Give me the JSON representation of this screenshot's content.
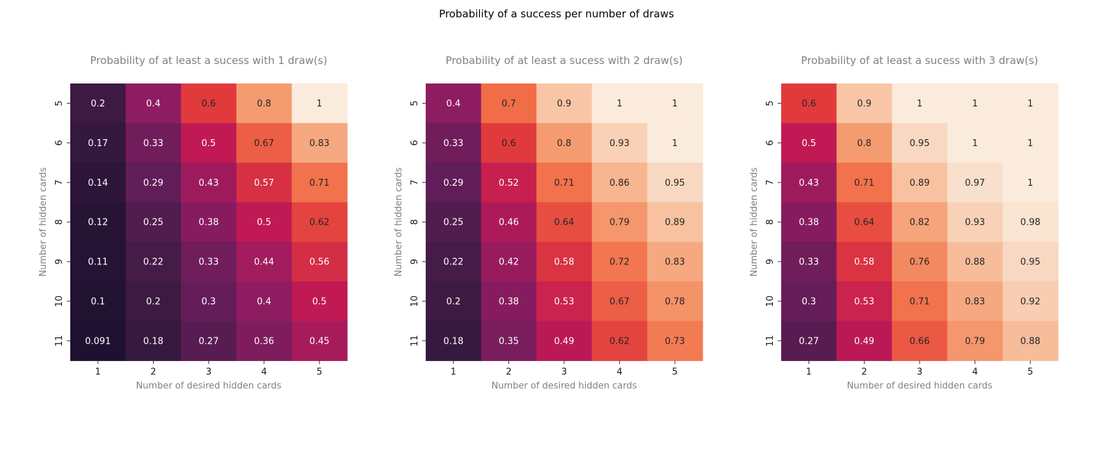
{
  "figure_title": "Probability of a success per number of draws",
  "chart_data": [
    {
      "type": "heatmap",
      "title": "Probability of at least a sucess with 1 draw(s)",
      "xlabel": "Number of desired hidden cards",
      "ylabel": "Number of hidden cards",
      "x_categories": [
        "1",
        "2",
        "3",
        "4",
        "5"
      ],
      "y_categories": [
        "5",
        "6",
        "7",
        "8",
        "9",
        "10",
        "11"
      ],
      "values": [
        [
          0.2,
          0.4,
          0.6,
          0.8,
          1
        ],
        [
          0.17,
          0.33,
          0.5,
          0.67,
          0.83
        ],
        [
          0.14,
          0.29,
          0.43,
          0.57,
          0.71
        ],
        [
          0.12,
          0.25,
          0.38,
          0.5,
          0.62
        ],
        [
          0.11,
          0.22,
          0.33,
          0.44,
          0.56
        ],
        [
          0.1,
          0.2,
          0.3,
          0.4,
          0.5
        ],
        [
          0.091,
          0.18,
          0.27,
          0.36,
          0.45
        ]
      ],
      "value_range": [
        0,
        1
      ],
      "colormap": "rocket",
      "annotations": true,
      "colorbar": false
    },
    {
      "type": "heatmap",
      "title": "Probability of at least a sucess with 2 draw(s)",
      "xlabel": "Number of desired hidden cards",
      "ylabel": "Number of hidden cards",
      "x_categories": [
        "1",
        "2",
        "3",
        "4",
        "5"
      ],
      "y_categories": [
        "5",
        "6",
        "7",
        "8",
        "9",
        "10",
        "11"
      ],
      "values": [
        [
          0.4,
          0.7,
          0.9,
          1,
          1
        ],
        [
          0.33,
          0.6,
          0.8,
          0.93,
          1
        ],
        [
          0.29,
          0.52,
          0.71,
          0.86,
          0.95
        ],
        [
          0.25,
          0.46,
          0.64,
          0.79,
          0.89
        ],
        [
          0.22,
          0.42,
          0.58,
          0.72,
          0.83
        ],
        [
          0.2,
          0.38,
          0.53,
          0.67,
          0.78
        ],
        [
          0.18,
          0.35,
          0.49,
          0.62,
          0.73
        ]
      ],
      "value_range": [
        0,
        1
      ],
      "colormap": "rocket",
      "annotations": true,
      "colorbar": false
    },
    {
      "type": "heatmap",
      "title": "Probability of at least a sucess with 3 draw(s)",
      "xlabel": "Number of desired hidden cards",
      "ylabel": "Number of hidden cards",
      "x_categories": [
        "1",
        "2",
        "3",
        "4",
        "5"
      ],
      "y_categories": [
        "5",
        "6",
        "7",
        "8",
        "9",
        "10",
        "11"
      ],
      "values": [
        [
          0.6,
          0.9,
          1,
          1,
          1
        ],
        [
          0.5,
          0.8,
          0.95,
          1,
          1
        ],
        [
          0.43,
          0.71,
          0.89,
          0.97,
          1
        ],
        [
          0.38,
          0.64,
          0.82,
          0.93,
          0.98
        ],
        [
          0.33,
          0.58,
          0.76,
          0.88,
          0.95
        ],
        [
          0.3,
          0.53,
          0.71,
          0.83,
          0.92
        ],
        [
          0.27,
          0.49,
          0.66,
          0.79,
          0.88
        ]
      ],
      "value_range": [
        0,
        1
      ],
      "colormap": "rocket",
      "annotations": true,
      "colorbar": false
    }
  ],
  "colors": {
    "title": "#000000",
    "subplot_title": "#808080",
    "axis_label": "#808080",
    "tick_label": "#1a1a1a",
    "annotation_light": "#ffffff",
    "annotation_dark": "#262626"
  }
}
